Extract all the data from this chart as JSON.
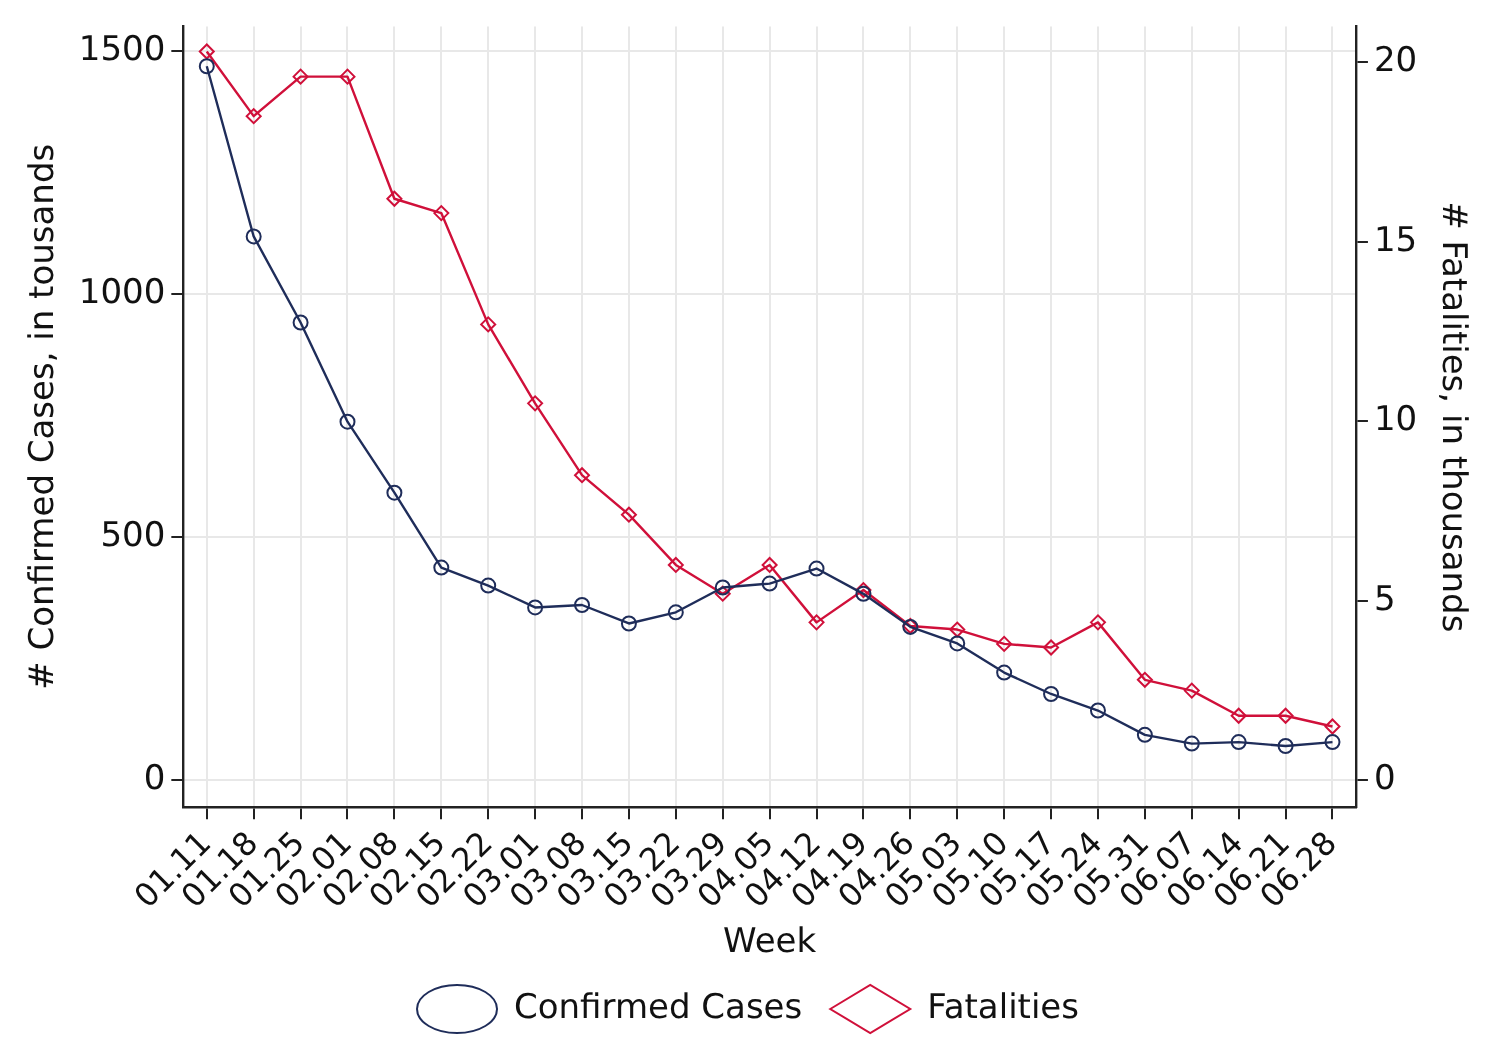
{
  "chart_data": {
    "type": "line",
    "xlabel": "Week",
    "ylabel": "# Confirmed Cases, in tousands",
    "y2label": "# Fatalities, in thousands",
    "categories": [
      "01.11",
      "01.18",
      "01.25",
      "02.01",
      "02.08",
      "02.15",
      "02.22",
      "03.01",
      "03.08",
      "03.15",
      "03.22",
      "03.29",
      "04.05",
      "04.12",
      "04.19",
      "04.26",
      "05.03",
      "05.10",
      "05.17",
      "05.24",
      "05.31",
      "06.07",
      "06.14",
      "06.21",
      "06.28"
    ],
    "series": [
      {
        "name": "Confirmed Cases",
        "color": "#1f2d5a",
        "marker": "circle",
        "values": [
          1468,
          1118,
          941,
          737,
          591,
          437,
          400,
          355,
          360,
          322,
          345,
          396,
          404,
          435,
          383,
          315,
          281,
          221,
          177,
          143,
          93,
          75,
          78,
          70,
          78
        ]
      },
      {
        "name": "Fatalities",
        "color": "#d0103a",
        "marker": "diamond",
        "axis": "y2",
        "values": [
          20.3,
          18.5,
          19.6,
          19.6,
          16.2,
          15.8,
          12.7,
          10.5,
          8.5,
          7.4,
          6.0,
          5.2,
          6.0,
          4.4,
          5.3,
          4.3,
          4.2,
          3.8,
          3.7,
          4.4,
          2.8,
          2.5,
          1.8,
          1.8,
          1.5
        ]
      }
    ],
    "ylim": [
      -56,
      1550
    ],
    "yticks": [
      0,
      500,
      1000,
      1500
    ],
    "y2lim": [
      -0.75,
      21
    ],
    "y2ticks": [
      0,
      5,
      10,
      15,
      20
    ],
    "grid": true,
    "legend": "bottom",
    "line_style": "solid"
  }
}
